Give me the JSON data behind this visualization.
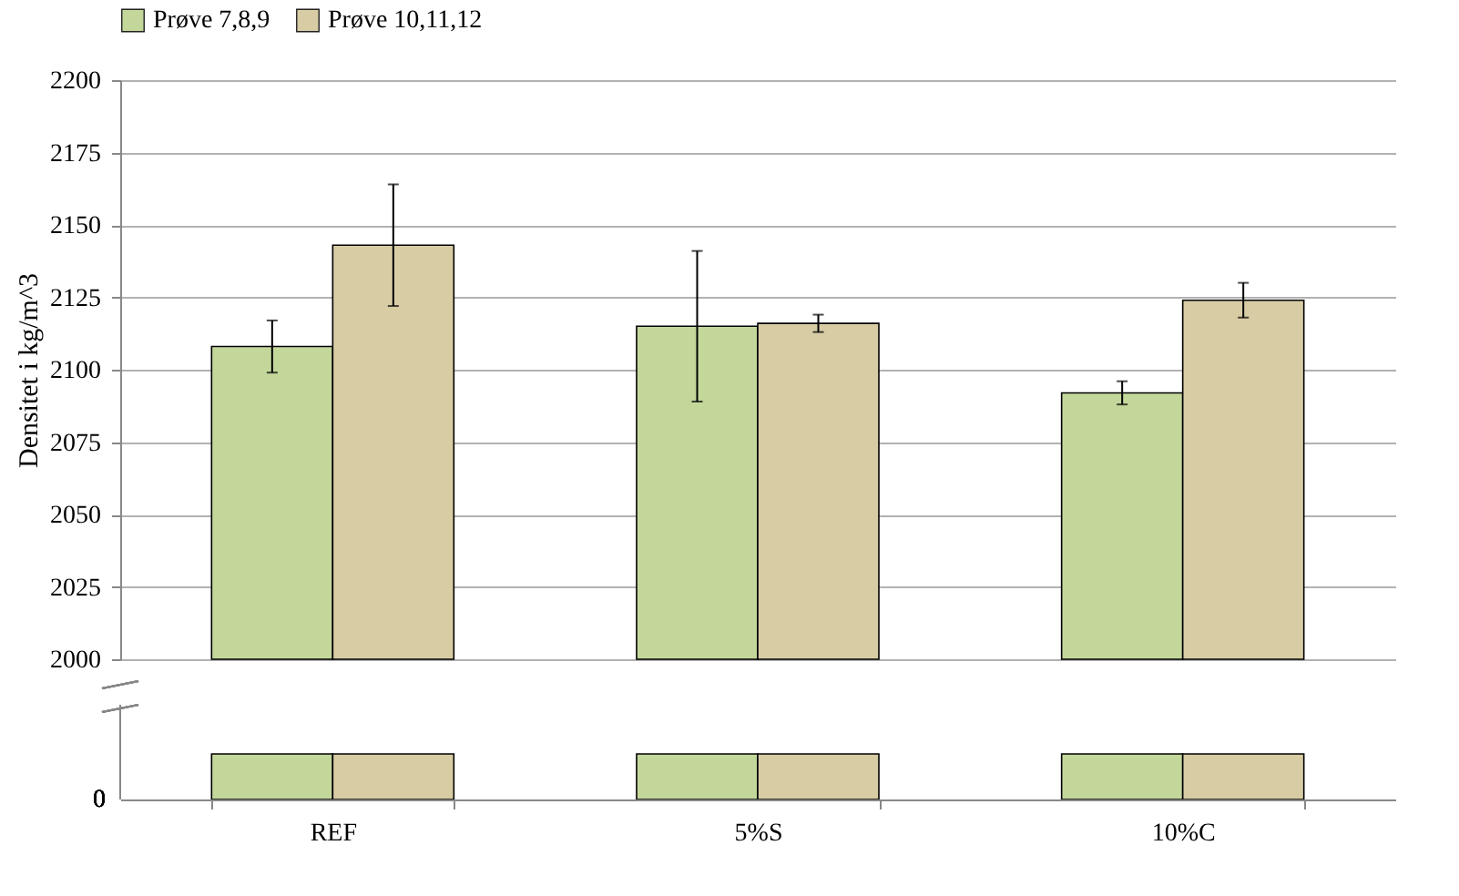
{
  "chart_data": {
    "type": "bar",
    "ylabel": "Densitet i kg/m^3",
    "categories": [
      "REF",
      "5%S",
      "10%C"
    ],
    "series": [
      {
        "name": "Prøve 7,8,9",
        "color": "#c4d79b",
        "values": [
          2108,
          2115,
          2092
        ],
        "errors": [
          9,
          26,
          4
        ]
      },
      {
        "name": "Prøve 10,11,12",
        "color": "#d8cca5",
        "values": [
          2143,
          2116,
          2124
        ],
        "errors": [
          21,
          3,
          6
        ]
      }
    ],
    "ylim": [
      2000,
      2200
    ],
    "yticks": [
      2000,
      2025,
      2050,
      2075,
      2100,
      2125,
      2150,
      2175,
      2200
    ],
    "grid": "y",
    "legend": "top",
    "annotations": [
      "0"
    ]
  }
}
